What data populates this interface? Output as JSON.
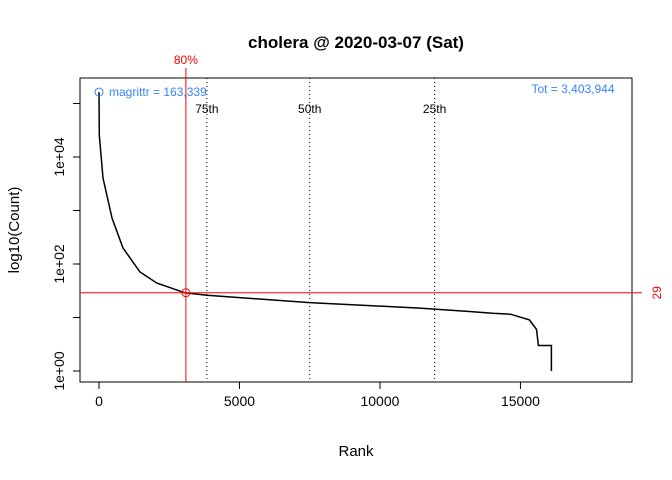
{
  "chart_data": {
    "type": "line",
    "title": "cholera @ 2020-03-07 (Sat)",
    "xlabel": "Rank",
    "ylabel": "log10(Count)",
    "y_scale": "log",
    "xlim": [
      -676,
      18970
    ],
    "ylim_log10": [
      -0.206,
      5.477
    ],
    "x_ticks": [
      0,
      5000,
      10000,
      15000
    ],
    "x_tick_labels": [
      "0",
      "5000",
      "10000",
      "15000"
    ],
    "y_ticks_log10": [
      0,
      1,
      2,
      3,
      4,
      5
    ],
    "y_tick_labels": [
      "1e+00",
      "",
      "1e+02",
      "",
      "1e+04",
      ""
    ],
    "series": [
      {
        "color": "#000000",
        "points": [
          [
            1,
            163339
          ],
          [
            10,
            25700
          ],
          [
            142,
            4060
          ],
          [
            462,
            724
          ],
          [
            853,
            199
          ],
          [
            1458,
            71
          ],
          [
            2062,
            44
          ],
          [
            3057,
            29
          ],
          [
            3840,
            26
          ],
          [
            7500,
            19
          ],
          [
            11411,
            15
          ],
          [
            13120,
            13
          ],
          [
            14006,
            12
          ],
          [
            14646,
            11.5
          ],
          [
            15320,
            9
          ],
          [
            15570,
            6
          ],
          [
            15640,
            3
          ],
          [
            16100,
            3
          ],
          [
            16100,
            1
          ]
        ]
      }
    ],
    "top_marker": {
      "label": "magrittr = 163,339",
      "rank": 1,
      "count": 163339,
      "color": "#3385ff"
    },
    "total_label": "Tot =  3,403,944",
    "threshold": {
      "color": "#ff0000",
      "pct_label": "80%",
      "rank": 3093,
      "count": 29,
      "count_label": "29"
    },
    "quantiles": [
      {
        "label": "75th",
        "rank": 3840
      },
      {
        "label": "50th",
        "rank": 7500
      },
      {
        "label": "25th",
        "rank": 11945
      }
    ],
    "grid": false
  }
}
